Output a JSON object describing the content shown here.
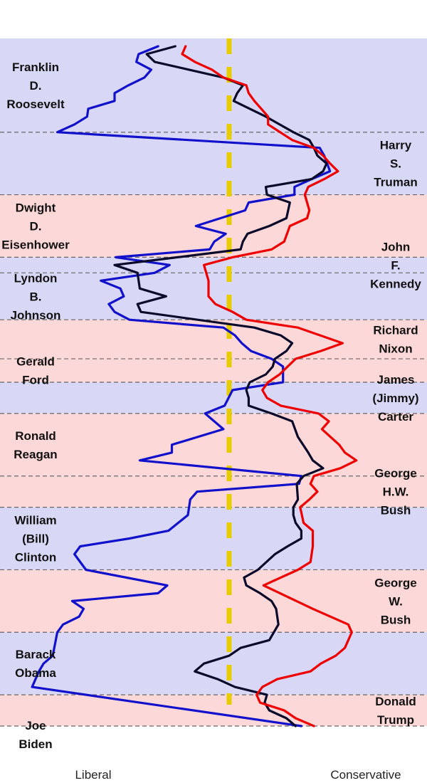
{
  "chart_data": {
    "type": "line",
    "orientation": "vertical-time-axis",
    "title": "",
    "x_axis_labels": {
      "left": "Liberal",
      "right": "Conservative"
    },
    "y_range": [
      1933,
      2021
    ],
    "center_line": {
      "color": "#e6cc00",
      "style": "dashed"
    },
    "colors": {
      "democrat_band": "#d8d8f6",
      "republican_band": "#fdd8d8",
      "band_separator": "#666666",
      "series": [
        "#1111cc",
        "#0a0a2a",
        "#ee0000"
      ]
    },
    "presidencies": [
      {
        "label": [
          "Franklin",
          "D.",
          "Roosevelt"
        ],
        "party": "D",
        "start": 1933,
        "end": 1945,
        "label_side": "left"
      },
      {
        "label": [
          "Harry",
          "S.",
          "Truman"
        ],
        "party": "D",
        "start": 1945,
        "end": 1953,
        "label_side": "right"
      },
      {
        "label": [
          "Dwight",
          "D.",
          "Eisenhower"
        ],
        "party": "R",
        "start": 1953,
        "end": 1961,
        "label_side": "left"
      },
      {
        "label": [
          "John",
          "F.",
          "Kennedy"
        ],
        "party": "D",
        "start": 1961,
        "end": 1963,
        "label_side": "right"
      },
      {
        "label": [
          "Lyndon",
          "B.",
          "Johnson"
        ],
        "party": "D",
        "start": 1963,
        "end": 1969,
        "label_side": "left"
      },
      {
        "label": [
          "Richard",
          "Nixon"
        ],
        "party": "R",
        "start": 1969,
        "end": 1974,
        "label_side": "right"
      },
      {
        "label": [
          "Gerald",
          "Ford"
        ],
        "party": "R",
        "start": 1974,
        "end": 1977,
        "label_side": "left"
      },
      {
        "label": [
          "James",
          "(Jimmy)",
          "Carter"
        ],
        "party": "D",
        "start": 1977,
        "end": 1981,
        "label_side": "right"
      },
      {
        "label": [
          "Ronald",
          "Reagan"
        ],
        "party": "R",
        "start": 1981,
        "end": 1989,
        "label_side": "left"
      },
      {
        "label": [
          "George",
          "H.W.",
          "Bush"
        ],
        "party": "R",
        "start": 1989,
        "end": 1993,
        "label_side": "right"
      },
      {
        "label": [
          "William",
          "(Bill)",
          "Clinton"
        ],
        "party": "D",
        "start": 1993,
        "end": 2001,
        "label_side": "left"
      },
      {
        "label": [
          "George",
          "W.",
          "Bush"
        ],
        "party": "R",
        "start": 2001,
        "end": 2009,
        "label_side": "right"
      },
      {
        "label": [
          "Barack",
          "Obama"
        ],
        "party": "D",
        "start": 2009,
        "end": 2017,
        "label_side": "left"
      },
      {
        "label": [
          "Donald",
          "Trump"
        ],
        "party": "R",
        "start": 2017,
        "end": 2021,
        "label_side": "right"
      },
      {
        "label": [
          "Joe",
          "Biden"
        ],
        "party": "D",
        "start": 2021,
        "end": 2021,
        "label_side": "left"
      }
    ],
    "series": [
      {
        "color": "#1111cc",
        "points": [
          [
            -0.62,
            1934
          ],
          [
            -0.79,
            1935
          ],
          [
            -0.81,
            1936
          ],
          [
            -0.68,
            1937
          ],
          [
            -0.74,
            1938
          ],
          [
            -0.88,
            1939
          ],
          [
            -1.0,
            1940
          ],
          [
            -1.0,
            1941
          ],
          [
            -1.23,
            1942
          ],
          [
            -1.24,
            1943
          ],
          [
            -1.35,
            1944
          ],
          [
            -1.5,
            1945
          ],
          [
            0.79,
            1947
          ],
          [
            0.83,
            1948
          ],
          [
            0.88,
            1950
          ],
          [
            0.72,
            1951
          ],
          [
            0.57,
            1952
          ],
          [
            0.57,
            1953
          ],
          [
            0.17,
            1954
          ],
          [
            0.14,
            1955
          ],
          [
            -0.29,
            1957
          ],
          [
            -0.03,
            1958
          ],
          [
            -0.13,
            1959
          ],
          [
            -0.17,
            1960
          ],
          [
            -0.99,
            1961
          ],
          [
            -0.52,
            1962
          ],
          [
            -0.65,
            1963
          ],
          [
            -1.12,
            1964
          ],
          [
            -0.95,
            1965
          ],
          [
            -0.92,
            1966
          ],
          [
            -1.05,
            1967
          ],
          [
            -1.0,
            1968
          ],
          [
            -0.87,
            1969
          ],
          [
            -0.05,
            1970
          ],
          [
            0.05,
            1971
          ],
          [
            0.11,
            1972
          ],
          [
            0.19,
            1973
          ],
          [
            0.37,
            1974
          ],
          [
            0.47,
            1975
          ],
          [
            0.47,
            1977
          ],
          [
            0.03,
            1978
          ],
          [
            -0.04,
            1980
          ],
          [
            -0.21,
            1981
          ],
          [
            -0.05,
            1983
          ],
          [
            -0.5,
            1985
          ],
          [
            -0.5,
            1986
          ],
          [
            -0.78,
            1987
          ],
          [
            0.63,
            1989
          ],
          [
            0.61,
            1990
          ],
          [
            -0.28,
            1991
          ],
          [
            -0.34,
            1992
          ],
          [
            -0.36,
            1994
          ],
          [
            -0.53,
            1996
          ],
          [
            -0.87,
            1997
          ],
          [
            -1.3,
            1998
          ],
          [
            -1.35,
            1999
          ],
          [
            -1.25,
            2001
          ],
          [
            -0.54,
            2003
          ],
          [
            -0.62,
            2004
          ],
          [
            -1.37,
            2005
          ],
          [
            -1.27,
            2006
          ],
          [
            -1.31,
            2007
          ],
          [
            -1.45,
            2008
          ],
          [
            -1.5,
            2009
          ],
          [
            -1.54,
            2012
          ],
          [
            -1.62,
            2013
          ],
          [
            -1.66,
            2014
          ],
          [
            -1.72,
            2016
          ],
          [
            0.63,
            2021
          ]
        ]
      },
      {
        "color": "#0a0a2a",
        "points": [
          [
            -0.47,
            1934
          ],
          [
            -0.72,
            1935
          ],
          [
            -0.65,
            1936
          ],
          [
            -0.35,
            1937
          ],
          [
            -0.05,
            1938
          ],
          [
            0.12,
            1939
          ],
          [
            0.07,
            1940
          ],
          [
            0.04,
            1941
          ],
          [
            0.32,
            1943
          ],
          [
            0.56,
            1945
          ],
          [
            0.7,
            1946
          ],
          [
            0.74,
            1947
          ],
          [
            0.77,
            1948
          ],
          [
            0.85,
            1949
          ],
          [
            0.82,
            1950
          ],
          [
            0.72,
            1951
          ],
          [
            0.32,
            1952
          ],
          [
            0.33,
            1953
          ],
          [
            0.53,
            1954
          ],
          [
            0.5,
            1956
          ],
          [
            0.35,
            1957
          ],
          [
            0.16,
            1958
          ],
          [
            0.12,
            1959
          ],
          [
            0.1,
            1960
          ],
          [
            -0.45,
            1961
          ],
          [
            -1.0,
            1962
          ],
          [
            -0.8,
            1963
          ],
          [
            -0.78,
            1965
          ],
          [
            -0.55,
            1966
          ],
          [
            -0.8,
            1967
          ],
          [
            -0.77,
            1968
          ],
          [
            0.22,
            1970
          ],
          [
            0.45,
            1971
          ],
          [
            0.55,
            1972
          ],
          [
            0.5,
            1973
          ],
          [
            0.4,
            1974
          ],
          [
            0.38,
            1975
          ],
          [
            0.32,
            1976
          ],
          [
            0.18,
            1977
          ],
          [
            0.15,
            1978
          ],
          [
            0.17,
            1979
          ],
          [
            0.17,
            1980
          ],
          [
            0.37,
            1981
          ],
          [
            0.55,
            1982
          ],
          [
            0.6,
            1984
          ],
          [
            0.69,
            1986
          ],
          [
            0.73,
            1987
          ],
          [
            0.82,
            1988
          ],
          [
            0.65,
            1989
          ],
          [
            0.59,
            1990
          ],
          [
            0.6,
            1992
          ],
          [
            0.56,
            1993
          ],
          [
            0.56,
            1994
          ],
          [
            0.58,
            1995
          ],
          [
            0.63,
            1996
          ],
          [
            0.63,
            1997
          ],
          [
            0.51,
            1998
          ],
          [
            0.4,
            1999
          ],
          [
            0.25,
            2001
          ],
          [
            0.13,
            2002
          ],
          [
            0.15,
            2003
          ],
          [
            0.27,
            2004
          ],
          [
            0.37,
            2005
          ],
          [
            0.41,
            2006
          ],
          [
            0.43,
            2008
          ],
          [
            0.35,
            2010
          ],
          [
            0.1,
            2011
          ],
          [
            0.0,
            2012
          ],
          [
            -0.22,
            2013
          ],
          [
            -0.3,
            2014
          ],
          [
            -0.1,
            2015
          ],
          [
            0.05,
            2016
          ],
          [
            0.33,
            2017
          ],
          [
            0.31,
            2018
          ],
          [
            0.35,
            2019
          ],
          [
            0.5,
            2020
          ],
          [
            0.58,
            2021
          ]
        ]
      },
      {
        "color": "#ee0000",
        "points": [
          [
            -0.38,
            1934
          ],
          [
            -0.41,
            1935
          ],
          [
            -0.3,
            1936
          ],
          [
            -0.15,
            1937
          ],
          [
            -0.05,
            1938
          ],
          [
            0.15,
            1939
          ],
          [
            0.17,
            1940
          ],
          [
            0.22,
            1941
          ],
          [
            0.28,
            1942
          ],
          [
            0.34,
            1943
          ],
          [
            0.34,
            1944
          ],
          [
            0.55,
            1946
          ],
          [
            0.74,
            1947
          ],
          [
            0.82,
            1948
          ],
          [
            0.88,
            1949
          ],
          [
            0.95,
            1950
          ],
          [
            0.83,
            1951
          ],
          [
            0.69,
            1952
          ],
          [
            0.66,
            1953
          ],
          [
            0.7,
            1955
          ],
          [
            0.68,
            1956
          ],
          [
            0.53,
            1957
          ],
          [
            0.48,
            1959
          ],
          [
            0.37,
            1960
          ],
          [
            0.03,
            1961
          ],
          [
            -0.22,
            1962
          ],
          [
            -0.18,
            1964
          ],
          [
            -0.18,
            1966
          ],
          [
            -0.12,
            1967
          ],
          [
            0.03,
            1968
          ],
          [
            0.15,
            1969
          ],
          [
            0.6,
            1970
          ],
          [
            0.99,
            1972
          ],
          [
            0.8,
            1973
          ],
          [
            0.58,
            1974
          ],
          [
            0.44,
            1976
          ],
          [
            0.34,
            1977
          ],
          [
            0.29,
            1978
          ],
          [
            0.33,
            1979
          ],
          [
            0.45,
            1980
          ],
          [
            0.78,
            1981
          ],
          [
            0.87,
            1982
          ],
          [
            0.81,
            1983
          ],
          [
            0.96,
            1985
          ],
          [
            1.01,
            1986
          ],
          [
            1.11,
            1987
          ],
          [
            0.97,
            1988
          ],
          [
            0.74,
            1989
          ],
          [
            0.71,
            1990
          ],
          [
            0.77,
            1991
          ],
          [
            0.7,
            1992
          ],
          [
            0.62,
            1993
          ],
          [
            0.65,
            1995
          ],
          [
            0.73,
            1996
          ],
          [
            0.73,
            1998
          ],
          [
            0.72,
            1999
          ],
          [
            0.71,
            2000
          ],
          [
            0.6,
            2001
          ],
          [
            0.3,
            2003
          ],
          [
            0.73,
            2006
          ],
          [
            1.04,
            2008
          ],
          [
            1.07,
            2009
          ],
          [
            1.01,
            2011
          ],
          [
            0.93,
            2012
          ],
          [
            0.8,
            2013
          ],
          [
            0.71,
            2014
          ],
          [
            0.42,
            2015
          ],
          [
            0.29,
            2016
          ],
          [
            0.24,
            2017
          ],
          [
            0.27,
            2018
          ],
          [
            0.48,
            2019
          ],
          [
            0.58,
            2020
          ],
          [
            0.74,
            2021
          ]
        ]
      }
    ]
  }
}
